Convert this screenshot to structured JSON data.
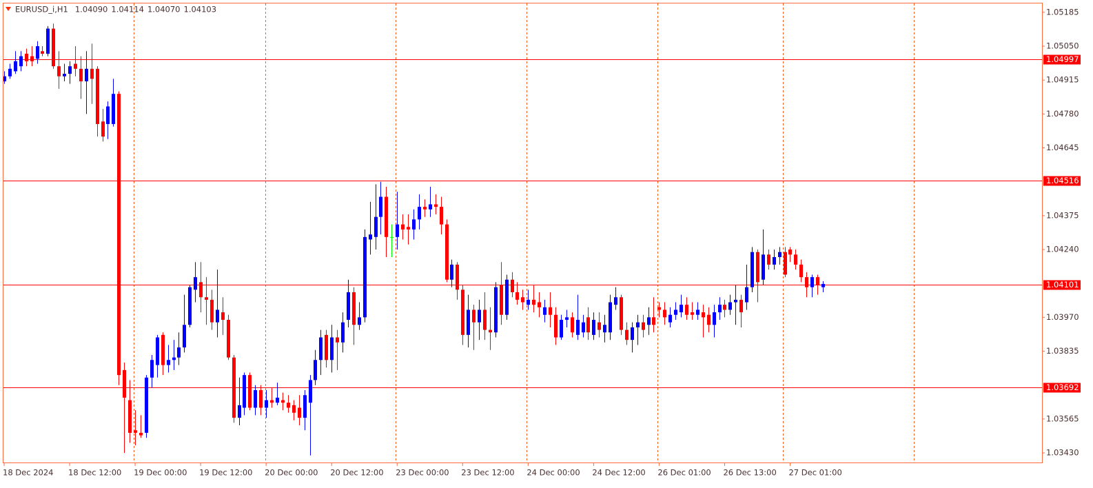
{
  "chart_data": {
    "type": "candlestick",
    "title": "EURUSD_i,H1",
    "header_values": [
      1.0409,
      1.04114,
      1.0407,
      1.04103
    ],
    "header_value_labels": [
      "1.04090",
      "1.04114",
      "1.04070",
      "1.04103"
    ],
    "up_color": "#0000ff",
    "down_color": "#ff0000",
    "doji_color": "#00ff00",
    "level_color": "#ff0000",
    "ylim": [
      1.03389,
      1.05223
    ],
    "yticks": [
      1.05185,
      {
        "value": 1.0505,
        "label": "1.05050"
      },
      1.04915,
      {
        "value": 1.0478,
        "label": "1.04780"
      },
      1.04645,
      1.04375,
      {
        "value": 1.0424,
        "label": "1.04240"
      },
      {
        "value": 1.0397,
        "label": "1.03970"
      },
      1.03835,
      1.03565,
      {
        "value": 1.0343,
        "label": "1.03430"
      }
    ],
    "levels": [
      1.04997,
      1.04516,
      1.04101,
      1.03692
    ],
    "xticks": [
      {
        "value": 0,
        "label": "18 Dec 2024"
      },
      {
        "value": 12,
        "label": "18 Dec 12:00"
      },
      {
        "value": 24,
        "label": "19 Dec 00:00"
      },
      {
        "value": 36,
        "label": "19 Dec 12:00"
      },
      {
        "value": 48,
        "label": "20 Dec 00:00"
      },
      {
        "value": 60,
        "label": "20 Dec 12:00"
      },
      {
        "value": 72,
        "label": "23 Dec 00:00"
      },
      {
        "value": 84,
        "label": "23 Dec 12:00"
      },
      {
        "value": 96,
        "label": "24 Dec 00:00"
      },
      {
        "value": 108,
        "label": "24 Dec 12:00"
      },
      {
        "value": 120,
        "label": "26 Dec 01:00"
      },
      {
        "value": 132,
        "label": "26 Dec 13:00"
      },
      {
        "value": 144,
        "label": "27 Dec 01:00"
      }
    ],
    "open": [
      1.0491,
      1.0493,
      1.0495,
      1.0497,
      1.0502,
      1.0501,
      1.05,
      1.0503,
      1.0502,
      1.0512,
      1.0497,
      1.0493,
      1.0494,
      1.0498,
      1.0496,
      1.0491,
      1.0496,
      1.0496,
      1.0475,
      1.0474,
      1.0474,
      1.0486,
      1.0376,
      1.0364,
      1.0352,
      1.0351,
      1.0351,
      1.0373,
      1.0378,
      1.039,
      1.0378,
      1.038,
      1.0381,
      1.0385,
      1.0394,
      1.0408,
      1.0411,
      1.0405,
      1.0404,
      1.0395,
      1.0399,
      1.0396,
      1.0381,
      1.0357,
      1.0361,
      1.0374,
      1.0361,
      1.0368,
      1.0361,
      1.0364,
      1.0363,
      1.0364,
      1.0363,
      1.0362,
      1.0361,
      1.0357,
      1.0363,
      1.0372,
      1.038,
      1.039,
      1.038,
      1.0389,
      1.0387,
      1.0396,
      1.0407,
      1.0394,
      1.0397,
      1.0428,
      1.0429,
      1.0437,
      1.0445,
      1.0429,
      1.0429,
      1.0434,
      1.0433,
      1.0432,
      1.0436,
      1.0441,
      1.044,
      1.0442,
      1.0441,
      1.0434,
      1.0412,
      1.0418,
      1.0408,
      1.039,
      1.04,
      1.0395,
      1.04,
      1.0392,
      1.0391,
      1.041,
      1.0398,
      1.0412,
      1.0407,
      1.0405,
      1.0402,
      1.0404,
      1.0403,
      1.0398,
      1.0401,
      1.0398,
      1.0389,
      1.0396,
      1.0397,
      1.039,
      1.0391,
      1.0397,
      1.039,
      1.0395,
      1.0391,
      1.0391,
      1.0402,
      1.0405,
      1.0392,
      1.0388,
      1.0393,
      1.0395,
      1.0394,
      1.0397,
      1.0401,
      1.04,
      1.0395,
      1.0398,
      1.0399,
      1.0402,
      1.0399,
      1.0398,
      1.0399,
      1.0398,
      1.0394,
      1.0399,
      1.0402,
      1.04,
      1.0403,
      1.0404,
      1.0403,
      1.0409,
      1.0423,
      1.0412,
      1.0422,
      1.0418,
      1.0421,
      1.0423,
      1.0424,
      1.0422,
      1.0418,
      1.0413,
      1.0409,
      1.0413,
      1.0409
    ],
    "high": [
      1.0495,
      1.0498,
      1.0503,
      1.0503,
      1.0504,
      1.0505,
      1.0507,
      1.0505,
      1.0513,
      1.0514,
      1.0503,
      1.0498,
      1.0499,
      1.0505,
      1.0501,
      1.0503,
      1.0506,
      1.0497,
      1.048,
      1.0483,
      1.0492,
      1.0487,
      1.0379,
      1.0372,
      1.036,
      1.0358,
      1.0374,
      1.0382,
      1.039,
      1.0391,
      1.0386,
      1.0388,
      1.0391,
      1.0406,
      1.041,
      1.0419,
      1.0419,
      1.0413,
      1.0408,
      1.0416,
      1.0405,
      1.0398,
      1.0382,
      1.0373,
      1.0375,
      1.0375,
      1.037,
      1.037,
      1.0368,
      1.0369,
      1.0371,
      1.0367,
      1.0366,
      1.0364,
      1.0366,
      1.0368,
      1.0374,
      1.0384,
      1.0392,
      1.0392,
      1.0394,
      1.0392,
      1.0399,
      1.0412,
      1.0409,
      1.0403,
      1.0432,
      1.0443,
      1.045,
      1.0451,
      1.0449,
      1.0434,
      1.0447,
      1.0438,
      1.0438,
      1.044,
      1.0446,
      1.0444,
      1.0449,
      1.0446,
      1.0445,
      1.0436,
      1.042,
      1.0419,
      1.041,
      1.0406,
      1.0402,
      1.0404,
      1.0407,
      1.0401,
      1.0411,
      1.0419,
      1.0414,
      1.0415,
      1.0411,
      1.0408,
      1.0408,
      1.041,
      1.0407,
      1.0404,
      1.0407,
      1.0401,
      1.0398,
      1.04,
      1.0399,
      1.0406,
      1.0398,
      1.0401,
      1.0399,
      1.0399,
      1.0398,
      1.0406,
      1.0409,
      1.0406,
      1.0395,
      1.0395,
      1.0398,
      1.0398,
      1.0401,
      1.0405,
      1.0403,
      1.0403,
      1.0401,
      1.0403,
      1.0406,
      1.0405,
      1.0403,
      1.0403,
      1.0402,
      1.0401,
      1.0402,
      1.0405,
      1.0404,
      1.0406,
      1.041,
      1.0406,
      1.0418,
      1.0425,
      1.0424,
      1.0432,
      1.0424,
      1.0424,
      1.0425,
      1.0425,
      1.0425,
      1.0424,
      1.042,
      1.0415,
      1.0414,
      1.0414,
      1.04114
    ],
    "low": [
      1.049,
      1.0492,
      1.0494,
      1.0495,
      1.0497,
      1.0497,
      1.0498,
      1.0501,
      1.0501,
      1.0496,
      1.0488,
      1.0491,
      1.049,
      1.0493,
      1.0484,
      1.0478,
      1.0482,
      1.0469,
      1.0467,
      1.0468,
      1.0473,
      1.037,
      1.0343,
      1.0347,
      1.0346,
      1.0349,
      1.0349,
      1.0369,
      1.0373,
      1.0374,
      1.0375,
      1.0376,
      1.0378,
      1.0383,
      1.0393,
      1.0403,
      1.0399,
      1.0394,
      1.0392,
      1.0389,
      1.039,
      1.038,
      1.0355,
      1.0354,
      1.0358,
      1.036,
      1.0358,
      1.0358,
      1.0357,
      1.0361,
      1.0362,
      1.036,
      1.0359,
      1.0356,
      1.0354,
      1.0352,
      1.0342,
      1.037,
      1.0374,
      1.0377,
      1.0375,
      1.0376,
      1.0383,
      1.0393,
      1.0386,
      1.0392,
      1.0395,
      1.0422,
      1.0424,
      1.043,
      1.0421,
      1.0421,
      1.0424,
      1.0428,
      1.0426,
      1.0428,
      1.0432,
      1.0437,
      1.0437,
      1.0438,
      1.043,
      1.0411,
      1.0409,
      1.0404,
      1.0386,
      1.0385,
      1.0384,
      1.0388,
      1.0388,
      1.0384,
      1.0389,
      1.0394,
      1.0396,
      1.0405,
      1.0402,
      1.04,
      1.04,
      1.0399,
      1.0397,
      1.0395,
      1.0393,
      1.0386,
      1.0388,
      1.0393,
      1.0389,
      1.0388,
      1.0389,
      1.0388,
      1.0388,
      1.0389,
      1.0387,
      1.0388,
      1.04,
      1.039,
      1.0386,
      1.0383,
      1.0386,
      1.0389,
      1.039,
      1.0391,
      1.0397,
      1.0394,
      1.0393,
      1.0396,
      1.0397,
      1.0396,
      1.0396,
      1.0396,
      1.0389,
      1.0391,
      1.0389,
      1.0396,
      1.0397,
      1.0398,
      1.0394,
      1.0393,
      1.04,
      1.0407,
      1.0403,
      1.041,
      1.0416,
      1.0416,
      1.0418,
      1.0413,
      1.0419,
      1.0416,
      1.0411,
      1.0405,
      1.0405,
      1.0406,
      1.0407
    ],
    "close": [
      1.0493,
      1.0496,
      1.0499,
      1.0501,
      1.0499,
      1.0499,
      1.0505,
      1.0502,
      1.0512,
      1.0497,
      1.0493,
      1.0494,
      1.0497,
      1.0496,
      1.0491,
      1.0496,
      1.0492,
      1.0474,
      1.0469,
      1.0481,
      1.0486,
      1.0374,
      1.0365,
      1.0351,
      1.0351,
      1.035,
      1.0373,
      1.038,
      1.0389,
      1.0378,
      1.038,
      1.0381,
      1.0385,
      1.0394,
      1.0409,
      1.0413,
      1.0405,
      1.0404,
      1.0395,
      1.04,
      1.0396,
      1.0381,
      1.0357,
      1.0362,
      1.0374,
      1.0361,
      1.0368,
      1.0361,
      1.0364,
      1.0363,
      1.0365,
      1.0363,
      1.0361,
      1.0359,
      1.0357,
      1.0366,
      1.0372,
      1.038,
      1.0389,
      1.038,
      1.0389,
      1.0387,
      1.0395,
      1.0407,
      1.0394,
      1.0397,
      1.0429,
      1.043,
      1.0437,
      1.0445,
      1.0429,
      1.0429,
      1.0434,
      1.0432,
      1.0432,
      1.0436,
      1.0441,
      1.044,
      1.0442,
      1.0441,
      1.0434,
      1.0412,
      1.0418,
      1.0408,
      1.039,
      1.04,
      1.0395,
      1.04,
      1.0392,
      1.0391,
      1.0409,
      1.0398,
      1.0412,
      1.0407,
      1.0404,
      1.0403,
      1.0404,
      1.0402,
      1.0401,
      1.0401,
      1.0398,
      1.0389,
      1.0396,
      1.0397,
      1.0391,
      1.0396,
      1.0395,
      1.0391,
      1.0396,
      1.0392,
      1.0394,
      1.0403,
      1.0405,
      1.0392,
      1.0388,
      1.0393,
      1.0395,
      1.0392,
      1.0397,
      1.0394,
      1.04,
      1.0397,
      1.0398,
      1.04,
      1.0402,
      1.0398,
      1.0398,
      1.04,
      1.0397,
      1.0394,
      1.0399,
      1.0402,
      1.04,
      1.0403,
      1.0404,
      1.0399,
      1.0409,
      1.0423,
      1.0411,
      1.0422,
      1.0418,
      1.0421,
      1.0423,
      1.0414,
      1.0422,
      1.0418,
      1.0413,
      1.0409,
      1.0413,
      1.041,
      1.04103
    ]
  }
}
